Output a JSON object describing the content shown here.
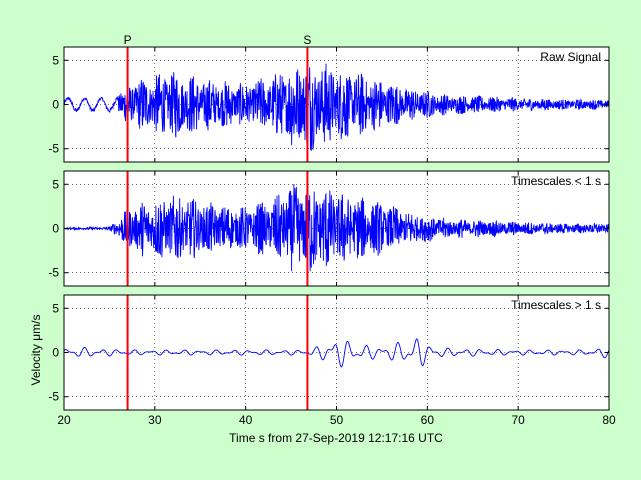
{
  "figure": {
    "background": "#ccffcc",
    "xlabel": "Time s from 27-Sep-2019 12:17:16 UTC",
    "ylabel": "Velocity μm/s",
    "signal_color": "#0000ff",
    "marker_color": "#ff0000"
  },
  "chart_data": [
    {
      "type": "line",
      "title": "Raw Signal",
      "xlim": [
        20,
        80
      ],
      "ylim": [
        -6.5,
        6.5
      ],
      "xticks": [
        20,
        30,
        40,
        50,
        60,
        70,
        80
      ],
      "yticks": [
        -5,
        0,
        5
      ],
      "grid": true,
      "markers": [
        {
          "label": "P",
          "x": 27
        },
        {
          "label": "S",
          "x": 46.8
        }
      ],
      "envelope": {
        "x": [
          20,
          25,
          26.5,
          28,
          32,
          36,
          40,
          43,
          45,
          47,
          50,
          55,
          58,
          62,
          66,
          70,
          75,
          80
        ],
        "amplitude": [
          0.8,
          0.5,
          1.8,
          3.0,
          4.0,
          3.0,
          2.5,
          3.5,
          5.0,
          5.5,
          4.5,
          3.0,
          2.0,
          1.2,
          1.0,
          0.8,
          0.6,
          0.6
        ]
      }
    },
    {
      "type": "line",
      "title": "Timescales < 1 s",
      "xlim": [
        20,
        80
      ],
      "ylim": [
        -6.5,
        6.5
      ],
      "xticks": [
        20,
        30,
        40,
        50,
        60,
        70,
        80
      ],
      "yticks": [
        -5,
        0,
        5
      ],
      "grid": true,
      "markers": [
        {
          "label": "",
          "x": 27
        },
        {
          "label": "",
          "x": 46.8
        }
      ],
      "envelope": {
        "x": [
          20,
          25,
          26.5,
          28,
          32,
          36,
          40,
          43,
          45,
          47,
          50,
          55,
          58,
          62,
          66,
          70,
          75,
          80
        ],
        "amplitude": [
          0.1,
          0.2,
          1.8,
          3.0,
          4.0,
          3.0,
          2.5,
          3.5,
          5.0,
          5.5,
          4.5,
          3.0,
          2.0,
          1.2,
          1.0,
          0.8,
          0.6,
          0.6
        ]
      }
    },
    {
      "type": "line",
      "title": "Timescales > 1 s",
      "xlim": [
        20,
        80
      ],
      "ylim": [
        -6.5,
        6.5
      ],
      "xticks": [
        20,
        30,
        40,
        50,
        60,
        70,
        80
      ],
      "yticks": [
        -5,
        0,
        5
      ],
      "grid": true,
      "markers": [
        {
          "label": "",
          "x": 27
        },
        {
          "label": "",
          "x": 46.8
        }
      ],
      "envelope": {
        "x": [
          20,
          22,
          25,
          28,
          40,
          47,
          49,
          50,
          52,
          55,
          58,
          59,
          60,
          62,
          70,
          78,
          80
        ],
        "amplitude": [
          0.5,
          0.6,
          0.4,
          0.3,
          0.3,
          0.3,
          1.2,
          2.0,
          1.0,
          0.7,
          1.5,
          2.0,
          1.0,
          0.5,
          0.3,
          0.3,
          0.7
        ]
      }
    }
  ]
}
